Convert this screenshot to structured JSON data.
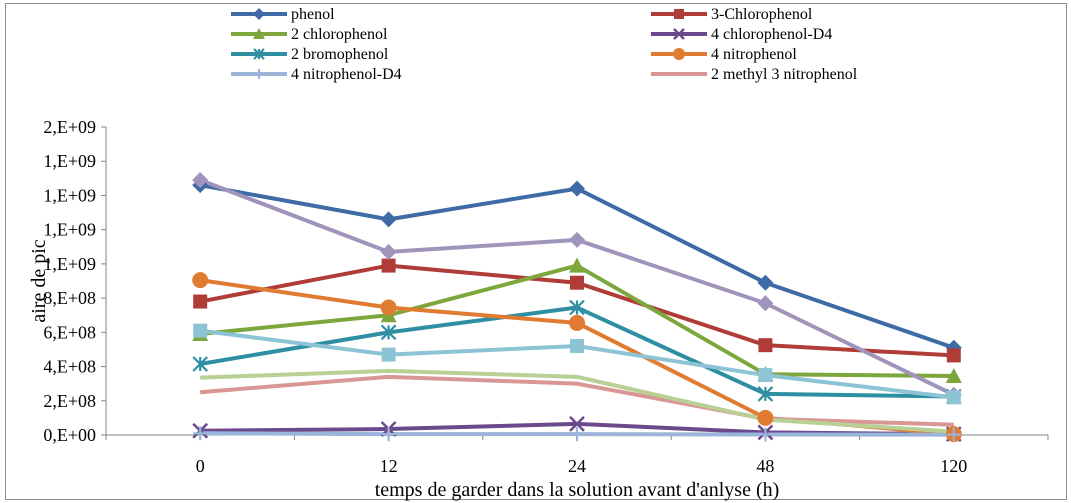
{
  "chart_data": {
    "type": "line",
    "title": "",
    "xlabel": "temps de garder dans la solution avant d'anlyse (h)",
    "ylabel": "aire de pic",
    "categories": [
      "0",
      "12",
      "24",
      "48",
      "120"
    ],
    "y_tick_labels": [
      "0,E+00",
      "2,E+08",
      "4,E+08",
      "6,E+08",
      "8,E+08",
      "1,E+09",
      "1,E+09",
      "1,E+09",
      "1,E+09",
      "2,E+09"
    ],
    "ylim": [
      0,
      1800000000
    ],
    "grid": false,
    "legend_position": "top",
    "series": [
      {
        "name": "phenol",
        "color": "#3E6BA5",
        "marker": "diamond",
        "values": [
          1460000000,
          1260000000,
          1440000000,
          890000000,
          510000000
        ]
      },
      {
        "name": "3-Chlorophenol",
        "color": "#B03C38",
        "marker": "square",
        "values": [
          780000000,
          990000000,
          890000000,
          525000000,
          465000000
        ]
      },
      {
        "name": "2 chlorophenol",
        "color": "#7DA63D",
        "marker": "triangle",
        "values": [
          590000000,
          700000000,
          990000000,
          355000000,
          345000000
        ]
      },
      {
        "name": "4 chlorophenol-D4",
        "color": "#6A4A8C",
        "marker": "x",
        "values": [
          25000000,
          35000000,
          65000000,
          15000000,
          5000000
        ]
      },
      {
        "name": "2 bromophenol",
        "color": "#2E8FA3",
        "marker": "asterisk",
        "values": [
          415000000,
          600000000,
          745000000,
          240000000,
          225000000
        ]
      },
      {
        "name": "4 nitrophenol",
        "color": "#E07B32",
        "marker": "circle",
        "values": [
          905000000,
          745000000,
          655000000,
          100000000,
          5000000
        ]
      },
      {
        "name": "4 nitrophenol-D4",
        "color": "#9AB4DA",
        "marker": "plus",
        "values": [
          10000000,
          5000000,
          5000000,
          3000000,
          2000000
        ]
      },
      {
        "name": "2 methyl 3 nitrophenol",
        "color": "#D99694",
        "marker": "none",
        "values": [
          250000000,
          340000000,
          300000000,
          95000000,
          60000000
        ]
      },
      {
        "name": "",
        "color": "#A094BC",
        "marker": "diamond",
        "values": [
          1490000000,
          1070000000,
          1140000000,
          770000000,
          235000000
        ]
      },
      {
        "name": "",
        "color": "#8CC4D6",
        "marker": "square",
        "values": [
          610000000,
          470000000,
          520000000,
          350000000,
          220000000
        ]
      },
      {
        "name": "",
        "color": "#B8D094",
        "marker": "none",
        "values": [
          335000000,
          375000000,
          340000000,
          90000000,
          20000000
        ]
      }
    ]
  }
}
